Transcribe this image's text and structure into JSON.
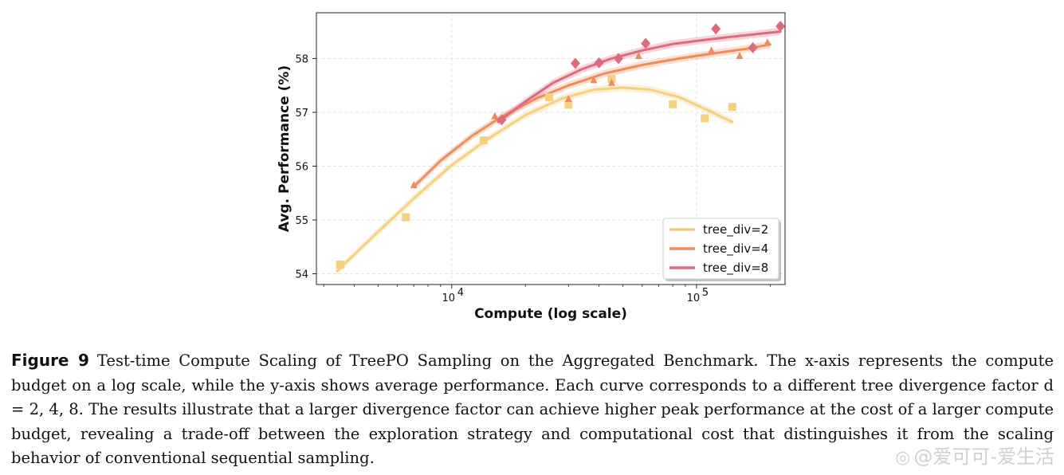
{
  "figure": {
    "label": "Figure 9",
    "caption_text": "Test-time Compute Scaling of TreePO Sampling on the Aggregated Benchmark. The x-axis represents the compute budget on a log scale, while the y-axis shows average performance. Each curve corresponds to a different tree divergence factor d = 2, 4, 8. The results illustrate that a larger divergence factor can achieve higher peak performance at the cost of a larger compute budget, revealing a trade-off between the exploration strategy and computational cost that distinguishes it from the scaling behavior of conventional sequential sampling."
  },
  "watermark": {
    "icon": "weibo-icon",
    "text": "@爱可可-爱生活"
  },
  "chart_data": {
    "type": "scatter",
    "title": "",
    "xlabel": "Compute (log scale)",
    "ylabel": "Avg. Performance (%)",
    "xscale": "log",
    "xlim": [
      2800,
      230000
    ],
    "ylim": [
      53.8,
      58.85
    ],
    "xticks": [
      10000,
      100000
    ],
    "xtick_labels": [
      "10",
      "10"
    ],
    "xtick_exponents": [
      "4",
      "5"
    ],
    "yticks": [
      54,
      55,
      56,
      57,
      58
    ],
    "ytick_labels": [
      "54",
      "55",
      "56",
      "57",
      "58"
    ],
    "grid": true,
    "legend_position": "lower-right",
    "series": [
      {
        "name": "tree_div=2",
        "marker": "square",
        "color": "#f6cf7f",
        "points": [
          [
            3500,
            54.17
          ],
          [
            6500,
            55.05
          ],
          [
            13500,
            56.48
          ],
          [
            25000,
            57.28
          ],
          [
            30000,
            57.14
          ],
          [
            45000,
            57.62
          ],
          [
            80000,
            57.15
          ],
          [
            108000,
            56.89
          ],
          [
            140000,
            57.1
          ]
        ],
        "fit": [
          [
            3400,
            54.05
          ],
          [
            5000,
            54.78
          ],
          [
            7000,
            55.4
          ],
          [
            10000,
            56.02
          ],
          [
            14000,
            56.5
          ],
          [
            20000,
            56.95
          ],
          [
            28000,
            57.25
          ],
          [
            38000,
            57.42
          ],
          [
            50000,
            57.46
          ],
          [
            65000,
            57.42
          ],
          [
            85000,
            57.28
          ],
          [
            110000,
            57.05
          ],
          [
            140000,
            56.82
          ]
        ]
      },
      {
        "name": "tree_div=4",
        "marker": "triangle",
        "color": "#f08c5b",
        "points": [
          [
            7000,
            55.65
          ],
          [
            15000,
            56.93
          ],
          [
            30000,
            57.25
          ],
          [
            38000,
            57.6
          ],
          [
            45000,
            57.55
          ],
          [
            58000,
            58.05
          ],
          [
            115000,
            58.15
          ],
          [
            150000,
            58.05
          ],
          [
            195000,
            58.3
          ]
        ],
        "fit": [
          [
            7000,
            55.62
          ],
          [
            9000,
            56.1
          ],
          [
            12000,
            56.55
          ],
          [
            16000,
            56.92
          ],
          [
            22000,
            57.25
          ],
          [
            30000,
            57.5
          ],
          [
            42000,
            57.72
          ],
          [
            60000,
            57.88
          ],
          [
            85000,
            58.0
          ],
          [
            120000,
            58.1
          ],
          [
            160000,
            58.18
          ],
          [
            200000,
            58.26
          ]
        ]
      },
      {
        "name": "tree_div=8",
        "marker": "diamond",
        "color": "#de6a7e",
        "points": [
          [
            16000,
            56.86
          ],
          [
            32000,
            57.91
          ],
          [
            40000,
            57.92
          ],
          [
            48000,
            58.0
          ],
          [
            62000,
            58.28
          ],
          [
            120000,
            58.55
          ],
          [
            170000,
            58.2
          ],
          [
            220000,
            58.6
          ]
        ],
        "fit": [
          [
            15500,
            56.82
          ],
          [
            20000,
            57.2
          ],
          [
            26000,
            57.55
          ],
          [
            34000,
            57.8
          ],
          [
            45000,
            58.0
          ],
          [
            60000,
            58.15
          ],
          [
            80000,
            58.27
          ],
          [
            110000,
            58.35
          ],
          [
            150000,
            58.42
          ],
          [
            220000,
            58.5
          ]
        ]
      }
    ]
  }
}
